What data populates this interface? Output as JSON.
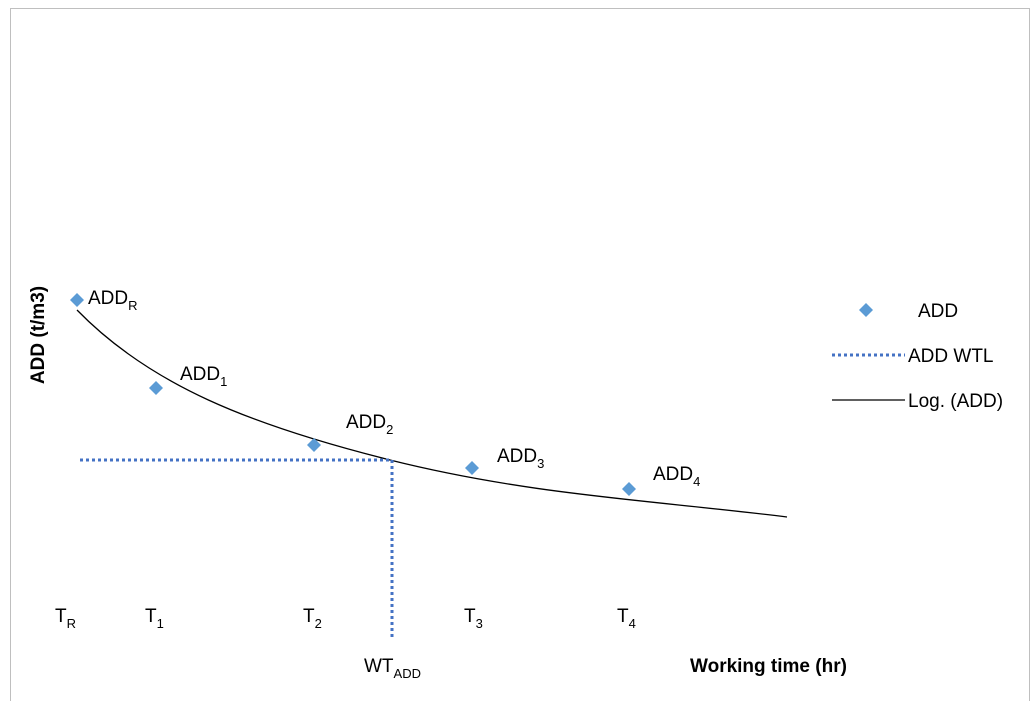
{
  "diagram": {
    "points": [
      {
        "base": "ADD",
        "sub": "R"
      },
      {
        "base": "ADD",
        "sub": "1"
      },
      {
        "base": "ADD",
        "sub": "2"
      },
      {
        "base": "ADD",
        "sub": "3"
      },
      {
        "base": "ADD",
        "sub": "4"
      }
    ],
    "times": [
      {
        "base": "T",
        "sub": "R"
      },
      {
        "base": "T",
        "sub": "1"
      },
      {
        "base": "T",
        "sub": "2"
      },
      {
        "base": "T",
        "sub": "3"
      },
      {
        "base": "T",
        "sub": "4"
      }
    ],
    "wt": {
      "base": "WT",
      "sub": "ADD"
    },
    "x_label": "Working time (hr)",
    "y_label": "ADD (t/m3)",
    "legend": [
      "ADD",
      "ADD WTL",
      "Log. (ADD)"
    ]
  }
}
